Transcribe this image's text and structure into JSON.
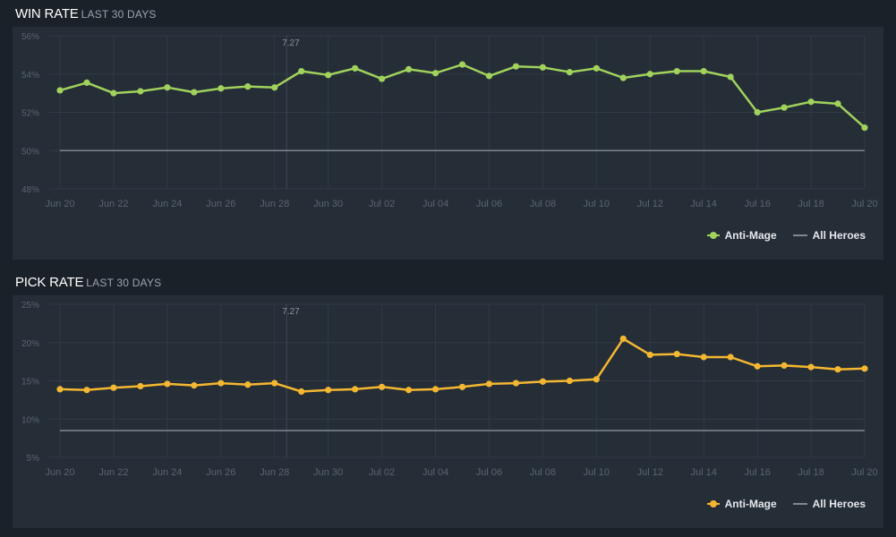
{
  "page": {
    "background": "#1b2129",
    "panel_color": "#252d37",
    "grid_color": "#313a45",
    "axis_text_color": "#5a6470"
  },
  "win_section": {
    "title": "WIN RATE",
    "subtitle": "LAST 30 DAYS"
  },
  "pick_section": {
    "title": "PICK RATE",
    "subtitle": "LAST 30 DAYS"
  },
  "chart_data": [
    {
      "type": "line",
      "title": "WIN RATE",
      "subtitle": "LAST 30 DAYS",
      "x_ticks": [
        "Jun 20",
        "Jun 22",
        "Jun 24",
        "Jun 26",
        "Jun 28",
        "Jun 30",
        "Jul 02",
        "Jul 04",
        "Jul 06",
        "Jul 08",
        "Jul 10",
        "Jul 12",
        "Jul 14",
        "Jul 16",
        "Jul 18",
        "Jul 20"
      ],
      "y_ticks": [
        "48%",
        "50%",
        "52%",
        "54%",
        "56%"
      ],
      "ylim": [
        48,
        56
      ],
      "grid": true,
      "legend_position": "bottom-right",
      "annotation": {
        "label": "7.27",
        "at_index": 9
      },
      "series": [
        {
          "name": "Anti-Mage",
          "color": "#a0d25c",
          "markers": true,
          "values": [
            53.15,
            53.55,
            53.0,
            53.1,
            53.3,
            53.05,
            53.25,
            53.35,
            53.3,
            54.15,
            53.95,
            54.3,
            53.75,
            54.25,
            54.05,
            54.5,
            53.9,
            54.4,
            54.35,
            54.1,
            54.3,
            53.8,
            54.0,
            54.15,
            54.15,
            53.85,
            52.0,
            52.25,
            52.55,
            52.45,
            51.2
          ]
        },
        {
          "name": "All Heroes",
          "color": "#7f8891",
          "markers": false,
          "values": [
            50.0,
            50.0,
            50.0,
            50.0,
            50.0,
            50.0,
            50.0,
            50.0,
            50.0,
            50.0,
            50.0,
            50.0,
            50.0,
            50.0,
            50.0,
            50.0,
            50.0,
            50.0,
            50.0,
            50.0,
            50.0,
            50.0,
            50.0,
            50.0,
            50.0,
            50.0,
            50.0,
            50.0,
            50.0,
            50.0,
            50.0
          ]
        }
      ]
    },
    {
      "type": "line",
      "title": "PICK RATE",
      "subtitle": "LAST 30 DAYS",
      "x_ticks": [
        "Jun 20",
        "Jun 22",
        "Jun 24",
        "Jun 26",
        "Jun 28",
        "Jun 30",
        "Jul 02",
        "Jul 04",
        "Jul 06",
        "Jul 08",
        "Jul 10",
        "Jul 12",
        "Jul 14",
        "Jul 16",
        "Jul 18",
        "Jul 20"
      ],
      "y_ticks": [
        "5%",
        "10%",
        "15%",
        "20%",
        "25%"
      ],
      "ylim": [
        5,
        25
      ],
      "grid": true,
      "legend_position": "bottom-right",
      "annotation": {
        "label": "7.27",
        "at_index": 9
      },
      "series": [
        {
          "name": "Anti-Mage",
          "color": "#f4b731",
          "markers": true,
          "values": [
            13.9,
            13.8,
            14.1,
            14.3,
            14.6,
            14.4,
            14.7,
            14.5,
            14.7,
            13.6,
            13.8,
            13.9,
            14.2,
            13.8,
            13.9,
            14.2,
            14.6,
            14.7,
            14.9,
            15.0,
            15.2,
            20.5,
            18.4,
            18.5,
            18.1,
            18.1,
            16.9,
            17.0,
            16.8,
            16.5,
            16.6
          ]
        },
        {
          "name": "All Heroes",
          "color": "#7f8891",
          "markers": false,
          "values": [
            8.5,
            8.5,
            8.5,
            8.5,
            8.5,
            8.5,
            8.5,
            8.5,
            8.5,
            8.5,
            8.5,
            8.5,
            8.5,
            8.5,
            8.5,
            8.5,
            8.5,
            8.5,
            8.5,
            8.5,
            8.5,
            8.5,
            8.5,
            8.5,
            8.5,
            8.5,
            8.5,
            8.5,
            8.5,
            8.5,
            8.5
          ]
        }
      ]
    }
  ]
}
